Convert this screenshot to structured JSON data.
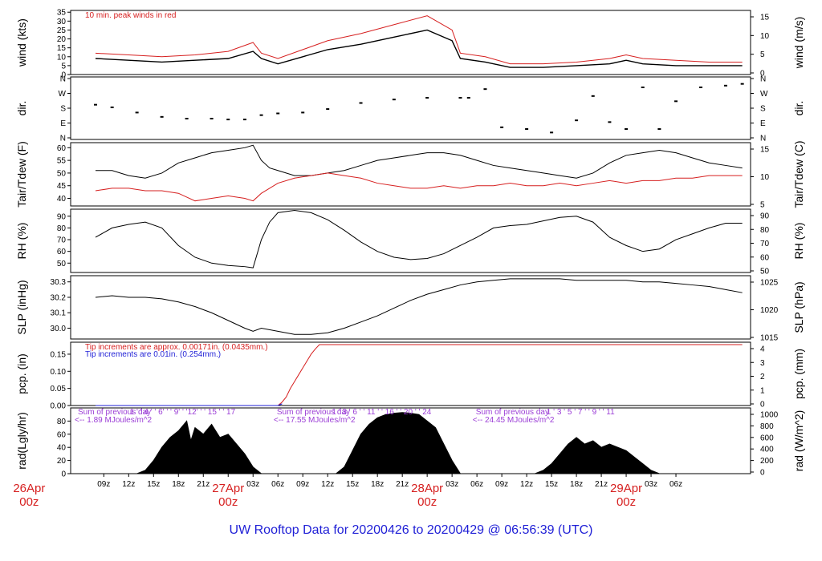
{
  "figure": {
    "title": "UW Rooftop Data for 20200426  to  20200429 @ 06:56:39  (UTC)",
    "title_color": "#1f1fd6",
    "x_hour_labels": [
      "09z",
      "12z",
      "15z",
      "18z",
      "21z",
      "00z",
      "03z",
      "06z",
      "09z",
      "12z",
      "15z",
      "18z",
      "21z",
      "00z",
      "03z",
      "06z",
      "09z",
      "12z",
      "15z",
      "18z",
      "21z",
      "00z",
      "03z",
      "06z"
    ],
    "x_day_labels": [
      {
        "hour": 0,
        "line1": "26Apr",
        "line2": "00z"
      },
      {
        "hour": 24,
        "line1": "27Apr",
        "line2": "00z"
      },
      {
        "hour": 48,
        "line1": "28Apr",
        "line2": "00z"
      },
      {
        "hour": 72,
        "line1": "29Apr",
        "line2": "00z"
      }
    ],
    "day_label_color": "#d61f1f"
  },
  "chart_data": [
    {
      "id": "wind",
      "type": "line",
      "ylabel_left": "wind (kts)",
      "ylabel_right": "wind (m/s)",
      "yticks_left": [
        0,
        5,
        10,
        15,
        20,
        25,
        30,
        35
      ],
      "yticks_right": [
        0,
        5,
        10,
        15
      ],
      "ylim": [
        0,
        36
      ],
      "annotation": "10 min. peak winds in red",
      "annotation_color": "#d61f1f",
      "series": [
        {
          "color": "#000000",
          "x": [
            8,
            12,
            16,
            20,
            24,
            27,
            28,
            30,
            33,
            36,
            40,
            44,
            48,
            51,
            52,
            55,
            58,
            62,
            66,
            70,
            72,
            74,
            78,
            82,
            86
          ],
          "values": [
            9,
            8,
            7,
            8,
            9,
            13,
            9,
            6,
            10,
            14,
            17,
            21,
            25,
            19,
            9,
            7,
            4,
            4,
            5,
            6,
            8,
            6,
            5,
            5,
            5
          ]
        },
        {
          "color": "#d61f1f",
          "x": [
            8,
            12,
            16,
            20,
            24,
            27,
            28,
            30,
            33,
            36,
            40,
            44,
            48,
            51,
            52,
            55,
            58,
            62,
            66,
            70,
            72,
            74,
            78,
            82,
            86
          ],
          "values": [
            12,
            11,
            10,
            11,
            13,
            18,
            12,
            9,
            14,
            19,
            23,
            28,
            33,
            25,
            12,
            10,
            6,
            6,
            7,
            9,
            11,
            9,
            8,
            7,
            7
          ]
        }
      ]
    },
    {
      "id": "dir",
      "type": "scatter",
      "ylabel_left": "dir.",
      "ylabel_right": "dir.",
      "yticks_left": [
        "N",
        "E",
        "S",
        "W",
        "N"
      ],
      "yticks_right": [
        "N",
        "E",
        "S",
        "W",
        "N"
      ],
      "ylim": [
        0,
        360
      ],
      "series": [
        {
          "color": "#000000",
          "x": [
            8,
            10,
            13,
            16,
            19,
            22,
            24,
            26,
            28,
            30,
            33,
            36,
            40,
            44,
            48,
            52,
            53,
            55,
            57,
            60,
            63,
            66,
            68,
            70,
            72,
            74,
            76,
            78,
            81,
            84,
            86
          ],
          "values": [
            200,
            185,
            155,
            130,
            120,
            120,
            115,
            115,
            140,
            150,
            155,
            175,
            210,
            230,
            240,
            240,
            240,
            290,
            70,
            60,
            40,
            110,
            250,
            100,
            60,
            300,
            60,
            220,
            300,
            310,
            320
          ]
        }
      ]
    },
    {
      "id": "temp",
      "type": "line",
      "ylabel_left": "Tair/Tdew (F)",
      "ylabel_right": "Tair/Tdew (C)",
      "yticks_left": [
        40,
        45,
        50,
        55,
        60
      ],
      "yticks_right": [
        5,
        10,
        15
      ],
      "ylim": [
        37,
        62
      ],
      "series": [
        {
          "color": "#000000",
          "x": [
            8,
            10,
            12,
            14,
            16,
            18,
            20,
            22,
            24,
            26,
            27,
            28,
            29,
            30,
            32,
            34,
            36,
            38,
            40,
            42,
            44,
            46,
            48,
            50,
            52,
            54,
            56,
            58,
            60,
            62,
            64,
            66,
            68,
            70,
            72,
            74,
            76,
            78,
            80,
            82,
            84,
            86
          ],
          "values": [
            51,
            51,
            49,
            48,
            50,
            54,
            56,
            58,
            59,
            60,
            61,
            55,
            52,
            51,
            49,
            49,
            50,
            51,
            53,
            55,
            56,
            57,
            58,
            58,
            57,
            55,
            53,
            52,
            51,
            50,
            49,
            48,
            50,
            54,
            57,
            58,
            59,
            58,
            56,
            54,
            53,
            52
          ]
        },
        {
          "color": "#d61f1f",
          "x": [
            8,
            10,
            12,
            14,
            16,
            18,
            20,
            22,
            24,
            26,
            27,
            28,
            30,
            32,
            34,
            36,
            38,
            40,
            42,
            44,
            46,
            48,
            50,
            52,
            54,
            56,
            58,
            60,
            62,
            64,
            66,
            68,
            70,
            72,
            74,
            76,
            78,
            80,
            82,
            84,
            86
          ],
          "values": [
            43,
            44,
            44,
            43,
            43,
            42,
            39,
            40,
            41,
            40,
            39,
            42,
            46,
            48,
            49,
            50,
            49,
            48,
            46,
            45,
            44,
            44,
            45,
            44,
            45,
            45,
            46,
            45,
            45,
            46,
            45,
            46,
            47,
            46,
            47,
            47,
            48,
            48,
            49,
            49,
            49
          ]
        }
      ]
    },
    {
      "id": "rh",
      "type": "line",
      "ylabel_left": "RH (%)",
      "ylabel_right": "RH (%)",
      "yticks_left": [
        50,
        60,
        70,
        80,
        90
      ],
      "yticks_right": [
        50,
        60,
        70,
        80,
        90
      ],
      "ylim": [
        42,
        96
      ],
      "series": [
        {
          "color": "#000000",
          "x": [
            8,
            10,
            12,
            14,
            16,
            18,
            20,
            22,
            24,
            26,
            27,
            28,
            29,
            30,
            32,
            34,
            36,
            38,
            40,
            42,
            44,
            46,
            48,
            50,
            52,
            54,
            56,
            58,
            60,
            62,
            64,
            66,
            68,
            70,
            72,
            74,
            76,
            78,
            80,
            82,
            84,
            86
          ],
          "values": [
            72,
            80,
            83,
            85,
            80,
            65,
            55,
            50,
            48,
            47,
            46,
            70,
            85,
            93,
            95,
            93,
            87,
            78,
            68,
            60,
            55,
            53,
            54,
            58,
            65,
            72,
            80,
            82,
            83,
            86,
            89,
            90,
            85,
            72,
            65,
            60,
            62,
            70,
            75,
            80,
            84,
            84
          ]
        }
      ]
    },
    {
      "id": "slp",
      "type": "line",
      "ylabel_left": "SLP (inHg)",
      "ylabel_right": "SLP (hPa)",
      "yticks_left": [
        30.0,
        30.1,
        30.2,
        30.3
      ],
      "yticks_right": [
        1015,
        1020,
        1025
      ],
      "ylim": [
        29.93,
        30.34
      ],
      "series": [
        {
          "color": "#000000",
          "x": [
            8,
            10,
            12,
            14,
            16,
            18,
            20,
            22,
            24,
            26,
            27,
            28,
            30,
            32,
            34,
            36,
            38,
            40,
            42,
            44,
            46,
            48,
            50,
            52,
            54,
            56,
            58,
            60,
            62,
            64,
            66,
            68,
            70,
            72,
            74,
            76,
            78,
            80,
            82,
            84,
            86
          ],
          "values": [
            30.2,
            30.21,
            30.2,
            30.2,
            30.19,
            30.17,
            30.14,
            30.1,
            30.05,
            30.0,
            29.98,
            30.0,
            29.98,
            29.96,
            29.96,
            29.97,
            30.0,
            30.04,
            30.08,
            30.13,
            30.18,
            30.22,
            30.25,
            30.28,
            30.3,
            30.31,
            30.32,
            30.32,
            30.32,
            30.32,
            30.31,
            30.31,
            30.31,
            30.31,
            30.3,
            30.3,
            30.29,
            30.28,
            30.27,
            30.25,
            30.23
          ]
        }
      ]
    },
    {
      "id": "pcp",
      "type": "line",
      "ylabel_left": "pcp. (in)",
      "ylabel_right": "pcp. (mm)",
      "yticks_left": [
        0.0,
        0.05,
        0.1,
        0.15
      ],
      "yticks_right": [
        0,
        1,
        2,
        3,
        4
      ],
      "ylim": [
        0,
        0.185
      ],
      "annotation_red": "Tip increments are approx. 0.00171in. (0.0435mm.)",
      "annotation_blue": "Tip increments are 0.01in. (0.254mm.)",
      "series": [
        {
          "color": "#d61f1f",
          "x": [
            8,
            30,
            30.5,
            31,
            31.5,
            32,
            32.5,
            33,
            33.5,
            34,
            34.5,
            35,
            36,
            40,
            50,
            60,
            70,
            80,
            86
          ],
          "values": [
            0,
            0,
            0.01,
            0.025,
            0.05,
            0.07,
            0.09,
            0.11,
            0.13,
            0.15,
            0.165,
            0.178,
            0.178,
            0.178,
            0.178,
            0.178,
            0.178,
            0.178,
            0.178
          ]
        },
        {
          "color": "#1f1fd6",
          "x": [
            8,
            20,
            30,
            30.5
          ],
          "values": [
            0,
            0,
            0,
            0.005
          ]
        }
      ]
    },
    {
      "id": "rad",
      "type": "area",
      "ylabel_left": "rad(Lgly/hr)",
      "ylabel_right": "rad (W/m^2)",
      "yticks_left": [
        0,
        20,
        40,
        60,
        80
      ],
      "yticks_right": [
        0,
        200,
        400,
        600,
        800,
        1000
      ],
      "ylim": [
        0,
        100
      ],
      "annotations": [
        {
          "hour": 8,
          "line1": "Sum of previous day",
          "line2": "<-- 1.89 MJoules/m^2"
        },
        {
          "hour": 32,
          "line1": "Sum of previous day",
          "line2": "<-- 17.55 MJoules/m^2"
        },
        {
          "hour": 56,
          "line1": "Sum of previous day",
          "line2": "<-- 24.45 MJoules/m^2"
        }
      ],
      "annotation_color": "#9b3dd6",
      "hour_marks": [
        {
          "text": "1 ' ' 4 ' ' 6' ' ' 9' ' '12' ' ' 15 ' ' 17",
          "hour": 18.5
        },
        {
          "text": "1 ' 3 ' 6 ' ' 11 ' ' 16 ' ' 20 ' ' 24",
          "hour": 42.5
        },
        {
          "text": "1 ' 3 ' 5 ' 7 ' ' 9 ' ' 11",
          "hour": 66.5
        }
      ],
      "series": [
        {
          "color": "#000000",
          "x": [
            13,
            14,
            15,
            16,
            17,
            18,
            19,
            19.5,
            20,
            21,
            22,
            23,
            24,
            25,
            26,
            27,
            28
          ],
          "values": [
            0,
            5,
            20,
            40,
            55,
            65,
            80,
            50,
            70,
            60,
            75,
            55,
            60,
            45,
            30,
            10,
            0
          ]
        },
        {
          "color": "#000000",
          "x": [
            37,
            38,
            39,
            40,
            41,
            42,
            43,
            44,
            45,
            46,
            47,
            48,
            49,
            50,
            51,
            52
          ],
          "values": [
            0,
            10,
            35,
            60,
            75,
            85,
            90,
            92,
            93,
            92,
            90,
            80,
            70,
            45,
            20,
            0
          ]
        },
        {
          "color": "#000000",
          "x": [
            61,
            62,
            63,
            64,
            65,
            66,
            67,
            68,
            69,
            70,
            71,
            72,
            73,
            74,
            75,
            76
          ],
          "values": [
            0,
            5,
            15,
            30,
            45,
            55,
            45,
            50,
            40,
            45,
            40,
            35,
            25,
            15,
            5,
            0
          ]
        }
      ]
    }
  ]
}
